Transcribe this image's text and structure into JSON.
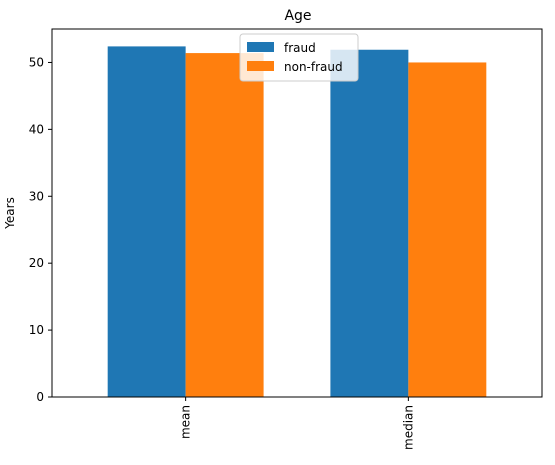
{
  "chart_data": {
    "type": "bar",
    "title": "Age",
    "xlabel": "",
    "ylabel": "Years",
    "categories": [
      "mean",
      "median"
    ],
    "series": [
      {
        "name": "fraud",
        "values": [
          52.4,
          51.9
        ],
        "color": "#1f77b4"
      },
      {
        "name": "non-fraud",
        "values": [
          51.4,
          50.0
        ],
        "color": "#ff7f0e"
      }
    ],
    "ylim": [
      0,
      55
    ],
    "yticks": [
      0,
      10,
      20,
      30,
      40,
      50
    ],
    "ytick_labels": [
      "0",
      "10",
      "20",
      "30",
      "40",
      "50"
    ],
    "grid": false,
    "legend_position": "upper-center"
  }
}
